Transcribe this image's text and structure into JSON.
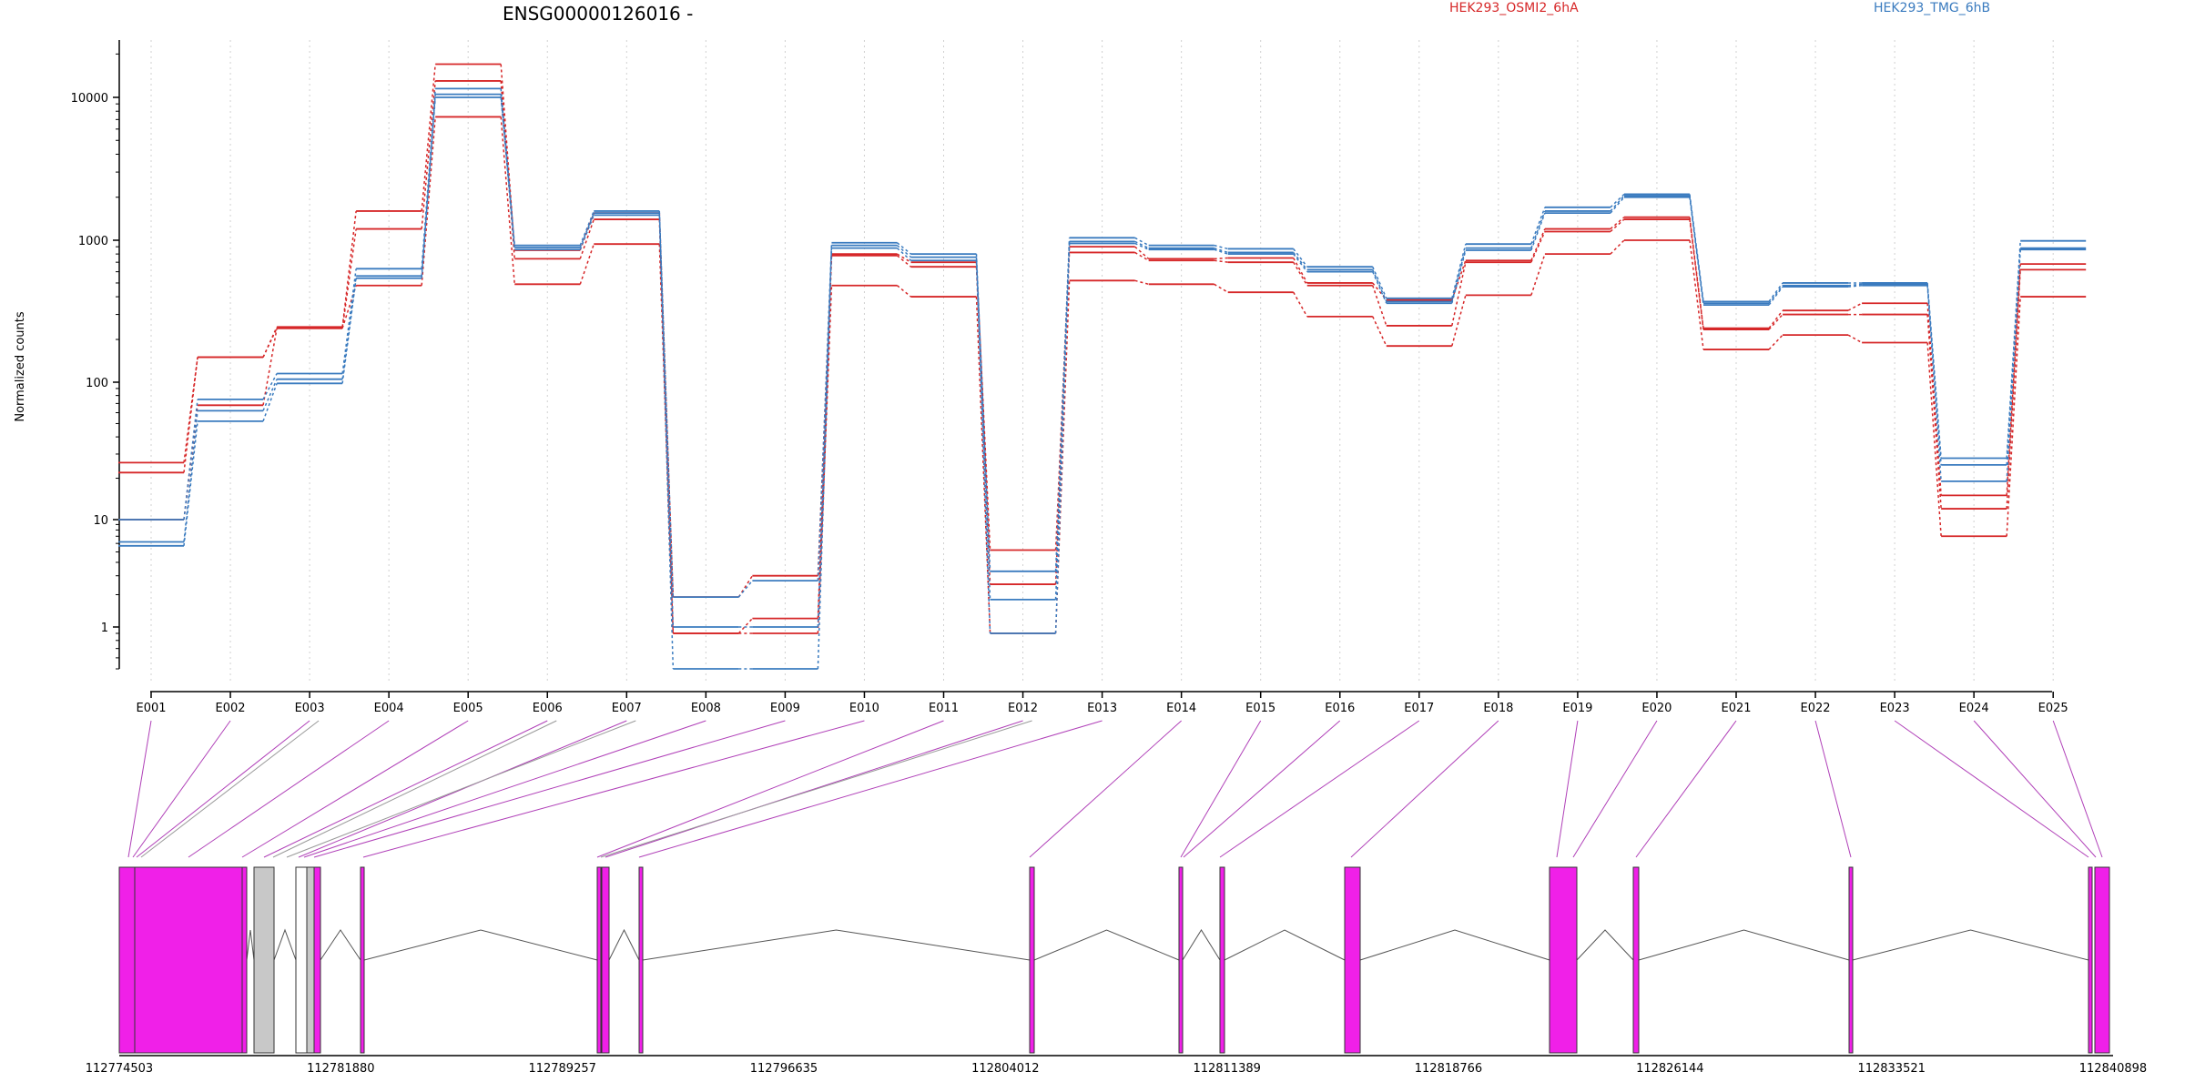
{
  "chart_data": {
    "type": "line",
    "title": "ENSG00000126016 -",
    "xlabel": "",
    "ylabel": "Normalized counts",
    "y_scale": "log",
    "ylim": [
      0.5,
      25000
    ],
    "y_ticks": [
      {
        "value": 1,
        "label": "1"
      },
      {
        "value": 10,
        "label": "10"
      },
      {
        "value": 100,
        "label": "100"
      },
      {
        "value": 1000,
        "label": "1000"
      },
      {
        "value": 10000,
        "label": "10000"
      }
    ],
    "grid": "vertical dotted lines at each exon",
    "legend_position": "top-right",
    "categories": [
      "E001",
      "E002",
      "E003",
      "E004",
      "E005",
      "E006",
      "E007",
      "E008",
      "E009",
      "E010",
      "E011",
      "E012",
      "E013",
      "E014",
      "E015",
      "E016",
      "E017",
      "E018",
      "E019",
      "E020",
      "E021",
      "E022",
      "E023",
      "E024",
      "E025"
    ],
    "series": [
      {
        "group": "HEK293_OSMI2_6hA",
        "color": "#d62728",
        "values": [
          26,
          150,
          245,
          1600,
          17000,
          850,
          1550,
          1.9,
          3.0,
          800,
          700,
          5.2,
          900,
          740,
          750,
          500,
          380,
          720,
          1200,
          1450,
          240,
          320,
          360,
          15,
          680
        ]
      },
      {
        "group": "HEK293_OSMI2_6hA",
        "color": "#d62728",
        "values": [
          22,
          150,
          240,
          1200,
          13000,
          740,
          1400,
          0.9,
          1.2,
          780,
          650,
          2.5,
          820,
          720,
          700,
          480,
          250,
          700,
          1150,
          1400,
          235,
          300,
          300,
          12,
          620
        ]
      },
      {
        "group": "HEK293_OSMI2_6hA",
        "color": "#d62728",
        "values": [
          10,
          68,
          240,
          480,
          7300,
          490,
          940,
          0.9,
          0.9,
          480,
          400,
          0.9,
          520,
          490,
          430,
          290,
          180,
          410,
          800,
          1000,
          170,
          215,
          190,
          7,
          400
        ]
      },
      {
        "group": "HEK293_TMG_6hB",
        "color": "#3a7bbf",
        "values": [
          10,
          75,
          115,
          630,
          11500,
          920,
          1600,
          1.9,
          2.7,
          960,
          800,
          3.3,
          1040,
          920,
          870,
          650,
          390,
          940,
          1700,
          2100,
          370,
          500,
          500,
          28,
          990
        ]
      },
      {
        "group": "HEK293_TMG_6hB",
        "color": "#3a7bbf",
        "values": [
          6.2,
          62,
          105,
          560,
          10500,
          890,
          1550,
          1.0,
          1.0,
          920,
          760,
          1.8,
          980,
          880,
          820,
          620,
          370,
          880,
          1600,
          2050,
          360,
          480,
          490,
          25,
          880
        ]
      },
      {
        "group": "HEK293_TMG_6hB",
        "color": "#3a7bbf",
        "values": [
          5.7,
          52,
          98,
          540,
          10000,
          860,
          1500,
          0.5,
          0.5,
          880,
          720,
          0.9,
          950,
          860,
          800,
          600,
          360,
          850,
          1550,
          2000,
          350,
          470,
          480,
          19,
          860
        ]
      }
    ],
    "legend": [
      {
        "label": "HEK293_OSMI2_6hA",
        "color": "#d62728"
      },
      {
        "label": "HEK293_TMG_6hB",
        "color": "#3a7bbf"
      }
    ]
  },
  "gene_model": {
    "coordinate_ticks": [
      "112774503",
      "112781880",
      "112789257",
      "112796635",
      "112804012",
      "112811389",
      "112818766",
      "112826144",
      "112833521",
      "112840898"
    ],
    "colors": {
      "exon_counted": "#f020e8",
      "exon_other": "#c8c8c8",
      "intron": "#555555",
      "connector_counted": "#b040b8",
      "connector_other": "#999999"
    }
  }
}
